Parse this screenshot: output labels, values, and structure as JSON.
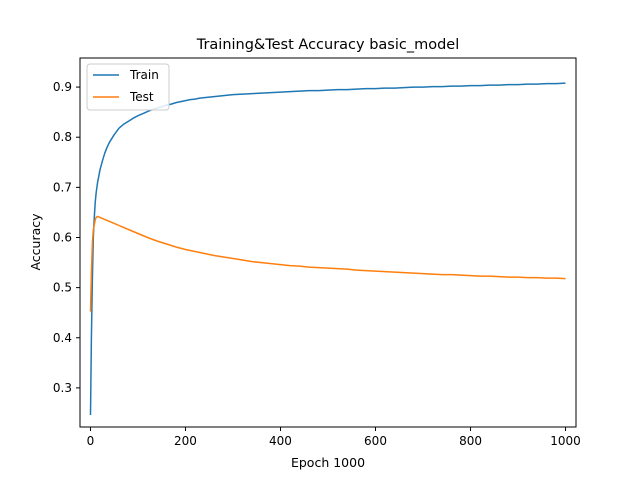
{
  "chart_data": {
    "type": "line",
    "title": "Training&Test Accuracy basic_model",
    "xlabel": "Epoch 1000",
    "ylabel": "Accuracy",
    "xlim": [
      -22,
      1022
    ],
    "ylim": [
      0.222,
      0.958
    ],
    "xticks": [
      0,
      200,
      400,
      600,
      800,
      1000
    ],
    "yticks": [
      0.3,
      0.4,
      0.5,
      0.6,
      0.7,
      0.8,
      0.9
    ],
    "grid": false,
    "legend_position": "top-left",
    "series": [
      {
        "name": "Train",
        "color": "#1f77b4",
        "x": [
          0,
          2,
          4,
          6,
          8,
          10,
          12,
          15,
          20,
          25,
          30,
          35,
          40,
          50,
          60,
          70,
          80,
          90,
          100,
          110,
          120,
          130,
          140,
          150,
          160,
          170,
          180,
          190,
          200,
          210,
          220,
          230,
          240,
          250,
          260,
          270,
          280,
          290,
          300,
          320,
          340,
          360,
          380,
          400,
          420,
          440,
          460,
          480,
          500,
          520,
          540,
          560,
          580,
          600,
          620,
          640,
          660,
          680,
          700,
          720,
          740,
          760,
          780,
          800,
          820,
          840,
          860,
          880,
          900,
          920,
          940,
          960,
          980,
          1000
        ],
        "values": [
          0.246,
          0.4,
          0.52,
          0.6,
          0.64,
          0.67,
          0.69,
          0.71,
          0.735,
          0.752,
          0.768,
          0.78,
          0.79,
          0.805,
          0.818,
          0.826,
          0.832,
          0.838,
          0.843,
          0.847,
          0.851,
          0.855,
          0.858,
          0.861,
          0.864,
          0.866,
          0.869,
          0.871,
          0.873,
          0.875,
          0.876,
          0.878,
          0.879,
          0.88,
          0.881,
          0.882,
          0.883,
          0.884,
          0.885,
          0.886,
          0.887,
          0.888,
          0.889,
          0.89,
          0.891,
          0.892,
          0.893,
          0.893,
          0.894,
          0.895,
          0.895,
          0.896,
          0.897,
          0.897,
          0.898,
          0.898,
          0.899,
          0.9,
          0.9,
          0.901,
          0.901,
          0.902,
          0.902,
          0.903,
          0.903,
          0.904,
          0.904,
          0.905,
          0.905,
          0.906,
          0.906,
          0.907,
          0.907,
          0.908
        ]
      },
      {
        "name": "Test",
        "color": "#ff7f0e",
        "x": [
          0,
          2,
          4,
          6,
          8,
          10,
          12,
          15,
          20,
          25,
          30,
          40,
          50,
          60,
          70,
          80,
          90,
          100,
          120,
          140,
          160,
          180,
          200,
          220,
          240,
          260,
          280,
          300,
          320,
          340,
          360,
          380,
          400,
          420,
          440,
          460,
          480,
          500,
          520,
          540,
          560,
          580,
          600,
          620,
          640,
          660,
          680,
          700,
          720,
          740,
          760,
          780,
          800,
          820,
          840,
          860,
          880,
          900,
          920,
          940,
          960,
          980,
          1000
        ],
        "values": [
          0.452,
          0.53,
          0.59,
          0.615,
          0.625,
          0.635,
          0.64,
          0.642,
          0.64,
          0.638,
          0.636,
          0.632,
          0.628,
          0.624,
          0.62,
          0.616,
          0.612,
          0.608,
          0.6,
          0.593,
          0.587,
          0.581,
          0.576,
          0.572,
          0.568,
          0.564,
          0.561,
          0.558,
          0.555,
          0.552,
          0.55,
          0.548,
          0.546,
          0.544,
          0.543,
          0.541,
          0.54,
          0.539,
          0.538,
          0.537,
          0.535,
          0.534,
          0.533,
          0.532,
          0.531,
          0.53,
          0.529,
          0.528,
          0.527,
          0.526,
          0.526,
          0.525,
          0.524,
          0.523,
          0.523,
          0.522,
          0.521,
          0.521,
          0.52,
          0.52,
          0.519,
          0.519,
          0.518
        ]
      }
    ]
  }
}
